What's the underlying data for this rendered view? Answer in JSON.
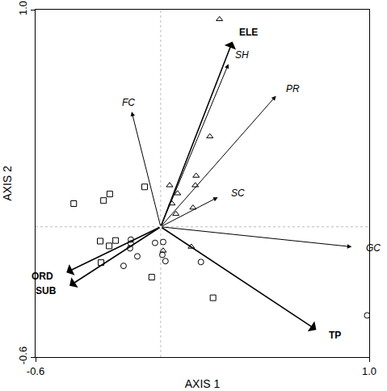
{
  "chart_data": {
    "type": "biplot",
    "x_label": "AXIS 1",
    "y_label": "AXIS 2",
    "xlim": [
      -0.6,
      1.0
    ],
    "ylim": [
      -0.6,
      1.0
    ],
    "xticks": [
      -0.6,
      {
        "value": 1.0,
        "label": "1.0"
      }
    ],
    "yticks": [
      -0.6,
      {
        "value": 1.0,
        "label": "1.0"
      }
    ],
    "grid": false,
    "series": [
      {
        "marker": "triangle",
        "color": "#000000",
        "x": [
          0.282,
          0.236,
          0.17,
          0.166,
          0.043,
          0.081,
          0.073,
          0.155,
          0.054,
          0.147,
          0.012
        ],
        "values": [
          0.956,
          0.416,
          0.235,
          0.191,
          0.191,
          0.154,
          0.059,
          0.088,
          0.107,
          -0.092,
          -0.11
        ]
      },
      {
        "marker": "square",
        "color": "#000000",
        "x": [
          -0.417,
          -0.274,
          -0.244,
          -0.077,
          -0.29,
          -0.216,
          -0.247,
          -0.286,
          -0.043,
          0.251
        ],
        "values": [
          0.107,
          0.121,
          0.151,
          0.184,
          -0.066,
          -0.063,
          -0.088,
          -0.165,
          -0.232,
          -0.327
        ]
      },
      {
        "marker": "circle",
        "color": "#000000",
        "x": [
          -0.143,
          -0.143,
          -0.147,
          -0.112,
          -0.178,
          -0.027,
          0.008,
          0.023,
          0.012,
          0.193,
          0.99
        ],
        "values": [
          -0.059,
          -0.077,
          -0.099,
          -0.136,
          -0.18,
          -0.074,
          -0.129,
          -0.158,
          -0.07,
          -0.162,
          -0.408
        ]
      }
    ],
    "vectors": [
      {
        "label": "ELE",
        "x": 0.344,
        "y": 0.853,
        "marker": "open"
      },
      {
        "label": "SH",
        "x": 0.325,
        "y": 0.75,
        "marker": "filled"
      },
      {
        "label": "PR",
        "x": 0.553,
        "y": 0.603,
        "marker": "filled"
      },
      {
        "label": "FC",
        "x": -0.139,
        "y": 0.53,
        "marker": "filled"
      },
      {
        "label": "SC",
        "x": 0.274,
        "y": 0.136,
        "marker": "filled"
      },
      {
        "label": "GC",
        "x": 0.916,
        "y": -0.092,
        "marker": "filled"
      },
      {
        "label": "TP",
        "x": 0.746,
        "y": -0.474,
        "marker": "open"
      },
      {
        "label": "ORD",
        "x": -0.452,
        "y": -0.21,
        "marker": "open"
      },
      {
        "label": "SUB",
        "x": -0.437,
        "y": -0.272,
        "marker": "open"
      }
    ]
  }
}
